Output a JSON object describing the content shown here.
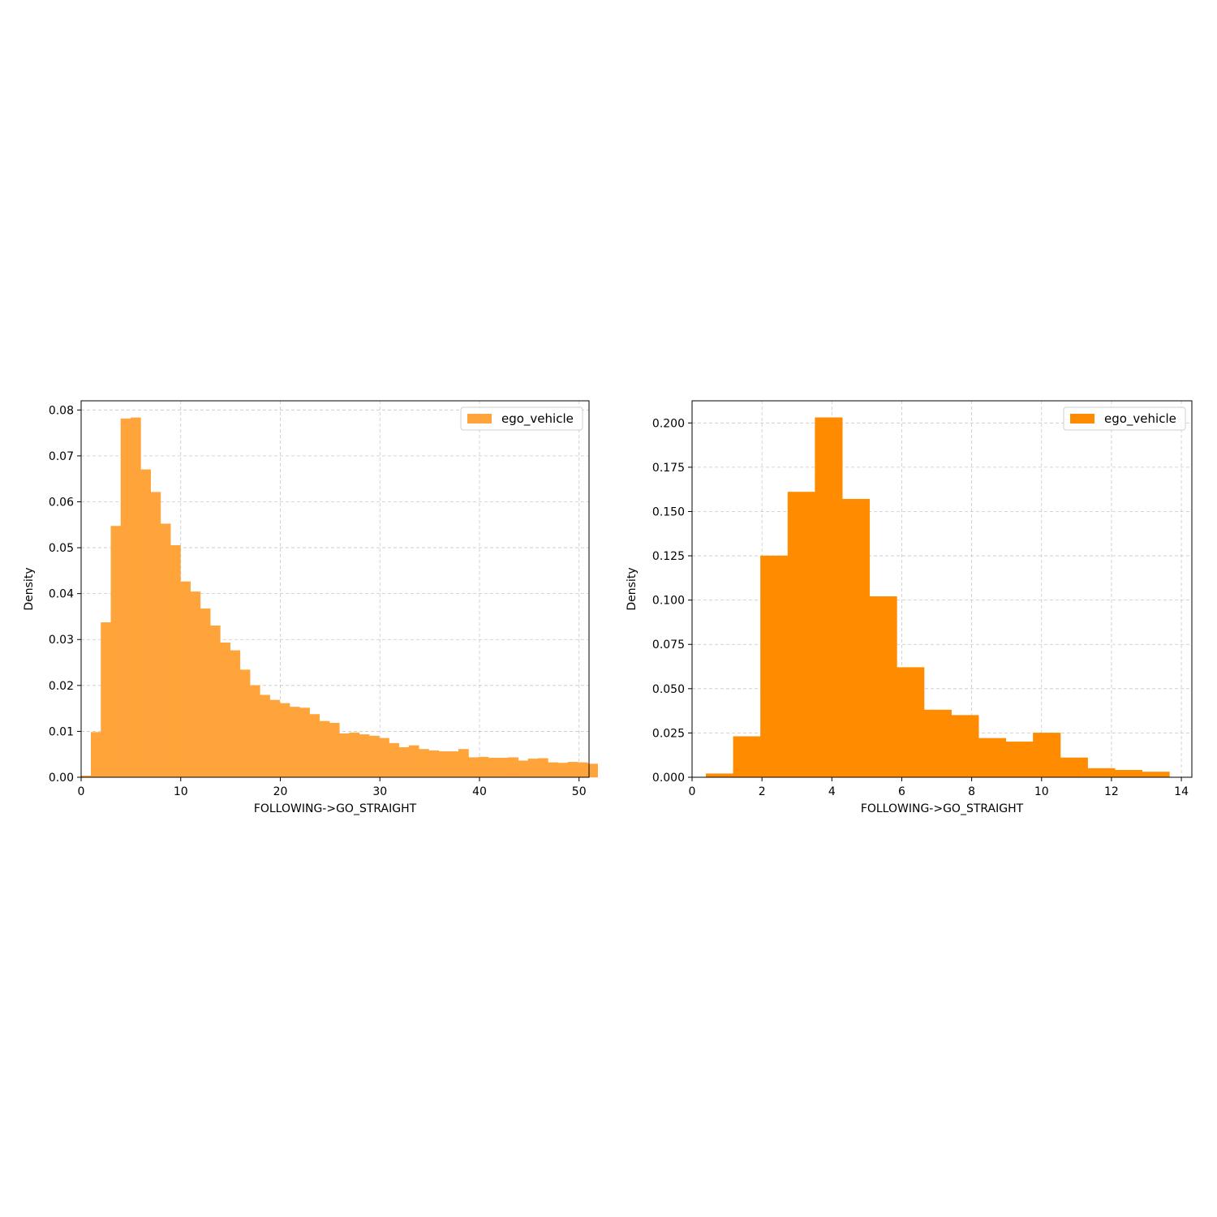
{
  "chart_data": [
    {
      "type": "bar",
      "histogram": true,
      "xlabel": "FOLLOWING->GO_STRAIGHT",
      "ylabel": "Density",
      "xlim": [
        0,
        51
      ],
      "ylim": [
        0,
        0.082
      ],
      "xticks": [
        0,
        10,
        20,
        30,
        40,
        50
      ],
      "yticks": [
        0.0,
        0.01,
        0.02,
        0.03,
        0.04,
        0.05,
        0.06,
        0.07,
        0.08
      ],
      "ytick_labels": [
        "0.00",
        "0.01",
        "0.02",
        "0.03",
        "0.04",
        "0.05",
        "0.06",
        "0.07",
        "0.08"
      ],
      "grid": true,
      "legend_position": "top-right",
      "color": "#ffa43a",
      "series": [
        {
          "name": "ego_vehicle",
          "bin_start": 0.0,
          "bin_width": 0.9975,
          "values": [
            0.0003,
            0.0098,
            0.0337,
            0.0547,
            0.0781,
            0.0783,
            0.067,
            0.0621,
            0.0552,
            0.0505,
            0.0426,
            0.0404,
            0.0367,
            0.033,
            0.0293,
            0.0276,
            0.0234,
            0.02,
            0.0179,
            0.0168,
            0.0161,
            0.0153,
            0.0151,
            0.0137,
            0.0122,
            0.0118,
            0.0095,
            0.0097,
            0.0093,
            0.009,
            0.0085,
            0.0074,
            0.0065,
            0.0069,
            0.0061,
            0.0058,
            0.0056,
            0.0056,
            0.0061,
            0.0043,
            0.0044,
            0.0042,
            0.0042,
            0.0043,
            0.0036,
            0.004,
            0.0041,
            0.0032,
            0.0031,
            0.0033,
            0.0032,
            0.0029
          ]
        }
      ]
    },
    {
      "type": "bar",
      "histogram": true,
      "xlabel": "FOLLOWING->GO_STRAIGHT",
      "ylabel": "Density",
      "xlim": [
        0,
        14.3
      ],
      "ylim": [
        0,
        0.2125
      ],
      "xticks": [
        0,
        2,
        4,
        6,
        8,
        10,
        12,
        14
      ],
      "yticks": [
        0.0,
        0.025,
        0.05,
        0.075,
        0.1,
        0.125,
        0.15,
        0.175,
        0.2
      ],
      "ytick_labels": [
        "0.000",
        "0.025",
        "0.050",
        "0.075",
        "0.100",
        "0.125",
        "0.150",
        "0.175",
        "0.200"
      ],
      "grid": true,
      "legend_position": "top-right",
      "color": "#ff8c00",
      "series": [
        {
          "name": "ego_vehicle",
          "bin_start": 0.4,
          "bin_width": 0.78,
          "values": [
            0.002,
            0.023,
            0.125,
            0.161,
            0.203,
            0.157,
            0.102,
            0.062,
            0.038,
            0.035,
            0.022,
            0.02,
            0.025,
            0.011,
            0.005,
            0.004,
            0.003
          ]
        }
      ]
    }
  ]
}
